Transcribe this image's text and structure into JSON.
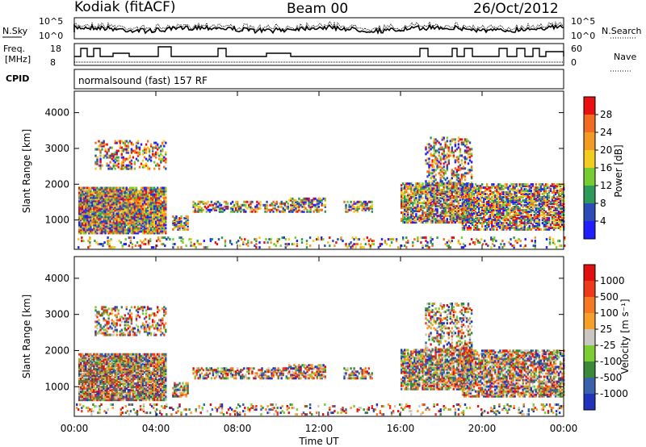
{
  "header": {
    "station": "Kodiak (fitACF)",
    "beam": "Beam 00",
    "date": "26/Oct/2012"
  },
  "status_panels": {
    "nsky_label": "N.Sky",
    "nsearch_label": "N.Search",
    "freq_label_1": "Freq.",
    "freq_label_2": "[MHz]",
    "nave_label": "Nave",
    "cpid_label": "CPID",
    "cpid_text": "normalsound (fast) 157 RF",
    "noise_ticks": [
      "10^5",
      "10^0"
    ],
    "freq_ticks": [
      "18",
      "8"
    ],
    "nave_ticks": [
      "60",
      "0"
    ]
  },
  "chart_data": [
    {
      "type": "heatmap",
      "name": "power",
      "ylabel": "Slant Range [km]",
      "ylim": [
        180,
        4600
      ],
      "yticks": [
        "1000",
        "2000",
        "3000",
        "4000"
      ],
      "colorbar": {
        "label": "Power [dB]",
        "ticks": [
          "4",
          "8",
          "12",
          "16",
          "20",
          "24",
          "28"
        ],
        "colors": [
          "#1f1fff",
          "#2e4cb8",
          "#2e9a5a",
          "#77cc33",
          "#f3cc22",
          "#f39a22",
          "#f36a22",
          "#e81010"
        ]
      }
    },
    {
      "type": "heatmap",
      "name": "velocity",
      "ylabel": "Slant Range [km]",
      "xlabel": "Time UT",
      "ylim": [
        180,
        4600
      ],
      "yticks": [
        "1000",
        "2000",
        "3000",
        "4000"
      ],
      "xticks": [
        "00:00",
        "04:00",
        "08:00",
        "12:00",
        "16:00",
        "20:00",
        "00:00"
      ],
      "colorbar": {
        "label": "Velocity [m s⁻¹]",
        "ticks": [
          "1000",
          "500",
          "100",
          "25",
          "-25",
          "-100",
          "-500",
          "-1000"
        ],
        "colors": [
          "#2233bb",
          "#3a62aa",
          "#3a8a3a",
          "#7ccc33",
          "#c9c7bf",
          "#f6a02a",
          "#f37a22",
          "#ec3a1a",
          "#e01010"
        ]
      }
    }
  ]
}
